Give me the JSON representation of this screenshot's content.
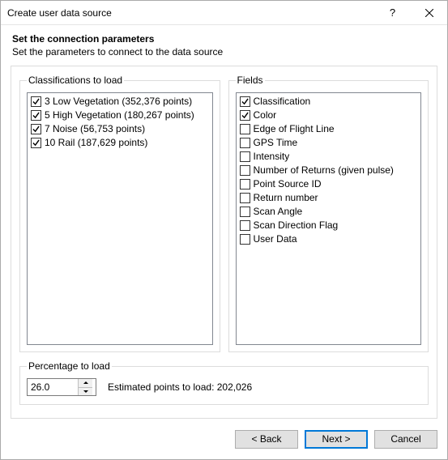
{
  "window": {
    "title": "Create user data source"
  },
  "header": {
    "title": "Set the connection parameters",
    "subtitle": "Set the parameters to connect to the data source"
  },
  "classifications": {
    "legend": "Classifications to load",
    "items": [
      {
        "label": "3 Low Vegetation (352,376 points)",
        "checked": true
      },
      {
        "label": "5 High Vegetation (180,267 points)",
        "checked": true
      },
      {
        "label": "7 Noise (56,753 points)",
        "checked": true
      },
      {
        "label": "10 Rail (187,629 points)",
        "checked": true
      }
    ]
  },
  "fields": {
    "legend": "Fields",
    "items": [
      {
        "label": "Classification",
        "checked": true
      },
      {
        "label": "Color",
        "checked": true
      },
      {
        "label": "Edge of Flight Line",
        "checked": false
      },
      {
        "label": "GPS Time",
        "checked": false
      },
      {
        "label": "Intensity",
        "checked": false
      },
      {
        "label": "Number of Returns (given pulse)",
        "checked": false
      },
      {
        "label": "Point Source ID",
        "checked": false
      },
      {
        "label": "Return number",
        "checked": false
      },
      {
        "label": "Scan Angle",
        "checked": false
      },
      {
        "label": "Scan Direction Flag",
        "checked": false
      },
      {
        "label": "User Data",
        "checked": false
      }
    ]
  },
  "percentage": {
    "legend": "Percentage to load",
    "value": "26.0",
    "estimated_label": "Estimated points to load: 202,026"
  },
  "buttons": {
    "back": "< Back",
    "next": "Next >",
    "cancel": "Cancel"
  },
  "colors": {
    "window_border": "#aaaaaa",
    "group_border": "#dcdcdc",
    "listbox_border": "#828790",
    "button_bg": "#e1e1e1",
    "button_border": "#adadad",
    "default_button_border": "#0078d7",
    "background": "#ffffff",
    "text": "#000000"
  }
}
